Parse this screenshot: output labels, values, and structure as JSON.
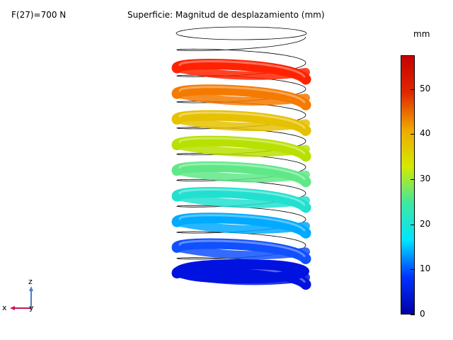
{
  "header": {
    "parameter": "F(27)=700 N",
    "title": "Superficie: Magnitud de desplazamiento (mm)"
  },
  "colorbar": {
    "unit": "mm",
    "min": 0,
    "max": 57.5,
    "ticks": [
      "0",
      "10",
      "20",
      "30",
      "40",
      "50"
    ],
    "tick_values": [
      0,
      10,
      20,
      30,
      40,
      50
    ],
    "colors": [
      "#0000a8",
      "#0033ff",
      "#00e5ff",
      "#3ee8a0",
      "#d4ea00",
      "#f1a800",
      "#e02800",
      "#c80000"
    ]
  },
  "axes_triad": {
    "z": "z",
    "x": "x",
    "y": "y",
    "colors": {
      "z": "#4a7fc1",
      "x": "#c8145a",
      "y": "#2e7d32"
    }
  },
  "coils": [
    {
      "color": "#ff2200"
    },
    {
      "color": "#f57a00"
    },
    {
      "color": "#e6c100"
    },
    {
      "color": "#b8e000"
    },
    {
      "color": "#60e888"
    },
    {
      "color": "#22e0d0"
    },
    {
      "color": "#00aaff"
    },
    {
      "color": "#1050ff"
    },
    {
      "color": "#0012e0"
    }
  ]
}
